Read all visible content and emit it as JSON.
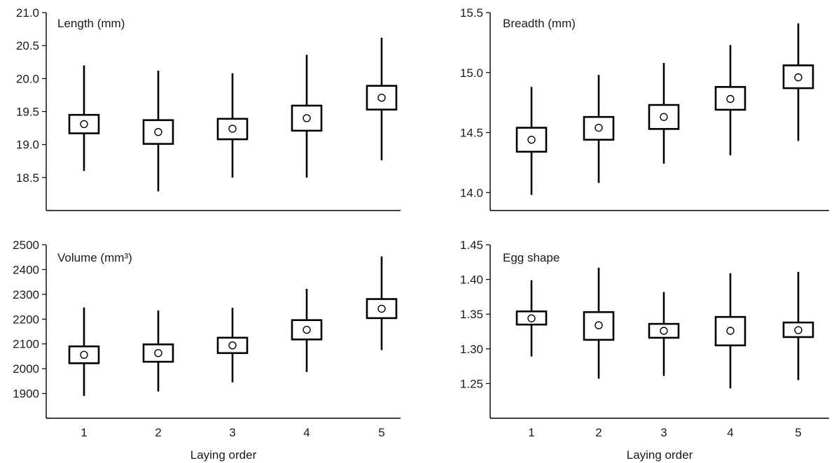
{
  "chart_data": [
    {
      "type": "boxplot",
      "title": "Length (mm)",
      "xlabel": "",
      "categories": [
        "1",
        "2",
        "3",
        "4",
        "5"
      ],
      "yticks": [
        "18.5",
        "19.0",
        "19.5",
        "20.0",
        "20.5",
        "21.0"
      ],
      "ylim": [
        18.0,
        21.0
      ],
      "boxes": [
        {
          "x": "1",
          "whisker_low": 18.6,
          "box_low": 19.17,
          "mean": 19.31,
          "box_high": 19.45,
          "whisker_high": 20.2
        },
        {
          "x": "2",
          "whisker_low": 18.29,
          "box_low": 19.01,
          "mean": 19.19,
          "box_high": 19.37,
          "whisker_high": 20.12
        },
        {
          "x": "3",
          "whisker_low": 18.5,
          "box_low": 19.08,
          "mean": 19.24,
          "box_high": 19.39,
          "whisker_high": 20.08
        },
        {
          "x": "4",
          "whisker_low": 18.5,
          "box_low": 19.21,
          "mean": 19.4,
          "box_high": 19.59,
          "whisker_high": 20.36
        },
        {
          "x": "5",
          "whisker_low": 18.76,
          "box_low": 19.53,
          "mean": 19.71,
          "box_high": 19.89,
          "whisker_high": 20.62
        }
      ],
      "grid": false
    },
    {
      "type": "boxplot",
      "title": "Breadth (mm)",
      "xlabel": "",
      "categories": [
        "1",
        "2",
        "3",
        "4",
        "5"
      ],
      "yticks": [
        "14.0",
        "14.5",
        "15.0",
        "15.5"
      ],
      "ylim": [
        13.85,
        15.5
      ],
      "boxes": [
        {
          "x": "1",
          "whisker_low": 13.98,
          "box_low": 14.34,
          "mean": 14.44,
          "box_high": 14.54,
          "whisker_high": 14.88
        },
        {
          "x": "2",
          "whisker_low": 14.08,
          "box_low": 14.44,
          "mean": 14.54,
          "box_high": 14.63,
          "whisker_high": 14.98
        },
        {
          "x": "3",
          "whisker_low": 14.24,
          "box_low": 14.53,
          "mean": 14.63,
          "box_high": 14.73,
          "whisker_high": 15.08
        },
        {
          "x": "4",
          "whisker_low": 14.31,
          "box_low": 14.69,
          "mean": 14.78,
          "box_high": 14.88,
          "whisker_high": 15.23
        },
        {
          "x": "5",
          "whisker_low": 14.43,
          "box_low": 14.87,
          "mean": 14.96,
          "box_high": 15.06,
          "whisker_high": 15.41
        }
      ],
      "grid": false
    },
    {
      "type": "boxplot",
      "title": "Volume (mm³)",
      "xlabel": "Laying order",
      "categories": [
        "1",
        "2",
        "3",
        "4",
        "5"
      ],
      "yticks": [
        "1900",
        "2000",
        "2100",
        "2200",
        "2300",
        "2400",
        "2500"
      ],
      "ylim": [
        1800,
        2500
      ],
      "boxes": [
        {
          "x": "1",
          "whisker_low": 1890,
          "box_low": 2022,
          "mean": 2056,
          "box_high": 2090,
          "whisker_high": 2247
        },
        {
          "x": "2",
          "whisker_low": 1908,
          "box_low": 2028,
          "mean": 2063,
          "box_high": 2098,
          "whisker_high": 2235
        },
        {
          "x": "3",
          "whisker_low": 1945,
          "box_low": 2063,
          "mean": 2094,
          "box_high": 2125,
          "whisker_high": 2246
        },
        {
          "x": "4",
          "whisker_low": 1987,
          "box_low": 2118,
          "mean": 2157,
          "box_high": 2196,
          "whisker_high": 2322
        },
        {
          "x": "5",
          "whisker_low": 2075,
          "box_low": 2204,
          "mean": 2242,
          "box_high": 2281,
          "whisker_high": 2453
        }
      ],
      "grid": false
    },
    {
      "type": "boxplot",
      "title": "Egg shape",
      "xlabel": "Laying order",
      "categories": [
        "1",
        "2",
        "3",
        "4",
        "5"
      ],
      "yticks": [
        "1.25",
        "1.30",
        "1.35",
        "1.40",
        "1.45"
      ],
      "ylim": [
        1.2,
        1.45
      ],
      "boxes": [
        {
          "x": "1",
          "whisker_low": 1.289,
          "box_low": 1.335,
          "mean": 1.344,
          "box_high": 1.354,
          "whisker_high": 1.399
        },
        {
          "x": "2",
          "whisker_low": 1.257,
          "box_low": 1.313,
          "mean": 1.334,
          "box_high": 1.353,
          "whisker_high": 1.417
        },
        {
          "x": "3",
          "whisker_low": 1.261,
          "box_low": 1.316,
          "mean": 1.326,
          "box_high": 1.336,
          "whisker_high": 1.382
        },
        {
          "x": "4",
          "whisker_low": 1.243,
          "box_low": 1.305,
          "mean": 1.326,
          "box_high": 1.346,
          "whisker_high": 1.409
        },
        {
          "x": "5",
          "whisker_low": 1.255,
          "box_low": 1.317,
          "mean": 1.327,
          "box_high": 1.338,
          "whisker_high": 1.411
        }
      ],
      "grid": false
    }
  ]
}
